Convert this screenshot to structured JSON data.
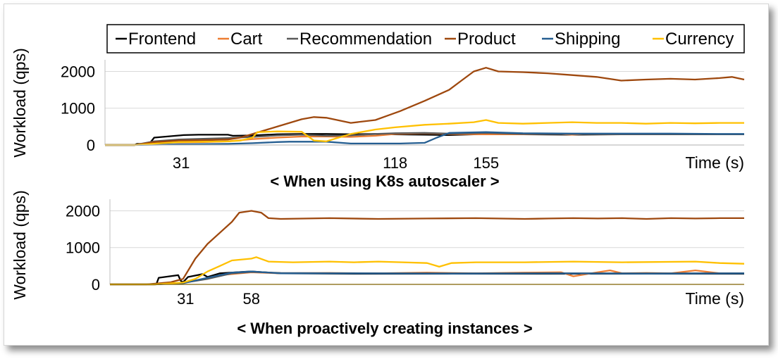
{
  "colors": {
    "Frontend": "#000000",
    "Cart": "#ED7D31",
    "Recommendation": "#595959",
    "Product": "#9E480E",
    "Shipping": "#255E91",
    "Currency": "#FFC000"
  },
  "legend": {
    "placement": "top",
    "items": [
      "Frontend",
      "Cart",
      "Recommendation",
      "Product",
      "Shipping",
      "Currency"
    ]
  },
  "chart_data": [
    {
      "type": "line",
      "caption": "< When using K8s autoscaler >",
      "xlabel": "Time (s)",
      "ylabel": "Workload (qps)",
      "xlim": [
        0,
        260
      ],
      "ylim": [
        0,
        2200
      ],
      "xticks": [
        31,
        118,
        155
      ],
      "yticks": [
        0,
        1000,
        2000
      ],
      "grid": "horizontal",
      "series": [
        {
          "name": "Frontend",
          "x": [
            0,
            12,
            13,
            18,
            20,
            32,
            38,
            50,
            52,
            60,
            70,
            80,
            90,
            100,
            110,
            118,
            130,
            140,
            155,
            170,
            190,
            210,
            230,
            250,
            260
          ],
          "y": [
            0,
            0,
            30,
            30,
            200,
            270,
            280,
            280,
            250,
            260,
            290,
            300,
            300,
            290,
            300,
            290,
            280,
            270,
            300,
            290,
            280,
            290,
            290,
            290,
            290
          ]
        },
        {
          "name": "Cart",
          "x": [
            0,
            12,
            20,
            30,
            40,
            50,
            60,
            70,
            80,
            90,
            100,
            110,
            118,
            130,
            140,
            155,
            170,
            185,
            190,
            195,
            210,
            230,
            250,
            260
          ],
          "y": [
            0,
            0,
            60,
            70,
            80,
            100,
            160,
            200,
            230,
            230,
            220,
            250,
            300,
            320,
            300,
            290,
            290,
            300,
            280,
            300,
            290,
            290,
            290,
            290
          ]
        },
        {
          "name": "Recommendation",
          "x": [
            0,
            12,
            20,
            30,
            40,
            50,
            60,
            70,
            80,
            90,
            100,
            110,
            118,
            130,
            140,
            155,
            170,
            190,
            210,
            230,
            250,
            260
          ],
          "y": [
            0,
            0,
            100,
            150,
            170,
            190,
            220,
            260,
            280,
            250,
            260,
            300,
            320,
            330,
            310,
            330,
            300,
            300,
            290,
            290,
            290,
            290
          ]
        },
        {
          "name": "Product",
          "x": [
            0,
            12,
            20,
            30,
            40,
            50,
            55,
            60,
            70,
            80,
            85,
            90,
            100,
            110,
            115,
            120,
            130,
            140,
            145,
            150,
            155,
            160,
            170,
            180,
            190,
            200,
            210,
            220,
            230,
            240,
            250,
            255,
            260
          ],
          "y": [
            0,
            0,
            80,
            120,
            130,
            150,
            200,
            300,
            500,
            700,
            760,
            740,
            600,
            680,
            800,
            920,
            1200,
            1500,
            1750,
            2000,
            2100,
            2000,
            1980,
            1950,
            1900,
            1850,
            1750,
            1780,
            1800,
            1780,
            1820,
            1850,
            1780
          ]
        },
        {
          "name": "Shipping",
          "x": [
            0,
            12,
            30,
            50,
            60,
            70,
            75,
            90,
            100,
            110,
            115,
            120,
            130,
            135,
            140,
            155,
            170,
            190,
            210,
            230,
            250,
            260
          ],
          "y": [
            0,
            0,
            20,
            30,
            50,
            80,
            90,
            90,
            40,
            40,
            40,
            40,
            60,
            200,
            330,
            350,
            320,
            310,
            310,
            310,
            300,
            300
          ]
        },
        {
          "name": "Currency",
          "x": [
            0,
            12,
            30,
            40,
            50,
            55,
            60,
            62,
            70,
            80,
            85,
            90,
            100,
            110,
            118,
            130,
            140,
            150,
            155,
            160,
            170,
            180,
            190,
            200,
            210,
            220,
            230,
            240,
            250,
            260
          ],
          "y": [
            0,
            0,
            80,
            90,
            100,
            120,
            200,
            350,
            370,
            360,
            120,
            100,
            300,
            420,
            480,
            550,
            580,
            620,
            680,
            600,
            580,
            600,
            620,
            600,
            600,
            580,
            600,
            590,
            600,
            600
          ]
        }
      ]
    },
    {
      "type": "line",
      "caption": "< When proactively creating instances >",
      "xlabel": "Time (s)",
      "ylabel": "Workload (qps)",
      "xlim": [
        0,
        260
      ],
      "ylim": [
        0,
        2200
      ],
      "xticks": [
        31,
        58
      ],
      "yticks": [
        0,
        1000,
        2000
      ],
      "grid": "horizontal",
      "series": [
        {
          "name": "Frontend",
          "x": [
            0,
            19,
            20,
            28,
            29,
            30,
            32,
            38,
            40,
            45,
            55,
            58,
            70,
            100,
            140,
            180,
            220,
            260
          ],
          "y": [
            0,
            0,
            180,
            250,
            100,
            60,
            200,
            280,
            200,
            300,
            340,
            350,
            300,
            290,
            290,
            290,
            290,
            290
          ]
        },
        {
          "name": "Cart",
          "x": [
            0,
            18,
            28,
            35,
            45,
            58,
            70,
            90,
            110,
            130,
            150,
            170,
            185,
            190,
            200,
            205,
            210,
            220,
            230,
            240,
            250,
            260
          ],
          "y": [
            0,
            0,
            30,
            100,
            250,
            330,
            300,
            310,
            300,
            320,
            300,
            320,
            330,
            220,
            330,
            380,
            300,
            310,
            300,
            380,
            300,
            300
          ]
        },
        {
          "name": "Recommendation",
          "x": [
            0,
            18,
            30,
            40,
            50,
            58,
            70,
            100,
            140,
            180,
            220,
            260
          ],
          "y": [
            0,
            0,
            40,
            150,
            300,
            340,
            310,
            300,
            300,
            300,
            300,
            300
          ]
        },
        {
          "name": "Product",
          "x": [
            0,
            15,
            25,
            30,
            35,
            40,
            45,
            50,
            53,
            58,
            62,
            65,
            70,
            90,
            110,
            130,
            150,
            170,
            180,
            190,
            200,
            210,
            220,
            230,
            240,
            250,
            260
          ],
          "y": [
            0,
            0,
            60,
            150,
            700,
            1100,
            1400,
            1700,
            1950,
            2000,
            1950,
            1800,
            1780,
            1800,
            1780,
            1790,
            1800,
            1780,
            1790,
            1800,
            1790,
            1800,
            1780,
            1800,
            1790,
            1800,
            1800
          ]
        },
        {
          "name": "Shipping",
          "x": [
            0,
            18,
            30,
            40,
            50,
            58,
            70,
            100,
            140,
            180,
            220,
            260
          ],
          "y": [
            0,
            0,
            30,
            180,
            320,
            350,
            300,
            300,
            290,
            300,
            290,
            300
          ]
        },
        {
          "name": "Currency",
          "x": [
            0,
            18,
            30,
            35,
            40,
            45,
            50,
            58,
            60,
            65,
            75,
            90,
            100,
            110,
            120,
            130,
            135,
            140,
            150,
            170,
            190,
            210,
            240,
            250,
            260
          ],
          "y": [
            0,
            0,
            50,
            150,
            350,
            500,
            650,
            700,
            740,
            620,
            600,
            620,
            600,
            620,
            600,
            580,
            480,
            580,
            600,
            600,
            620,
            600,
            620,
            580,
            560
          ]
        }
      ]
    }
  ]
}
